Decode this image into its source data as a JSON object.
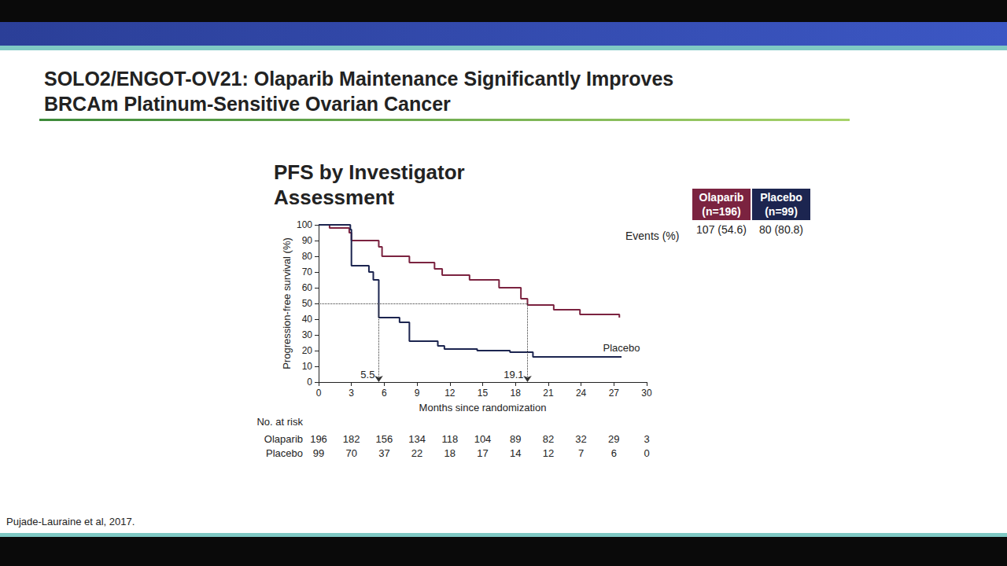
{
  "slide": {
    "title": [
      "SOLO2/ENGOT-OV21: Olaparib Maintenance Significantly Improves",
      "BRCAm Platinum-Sensitive Ovarian Cancer"
    ],
    "source": "Pujade-Lauraine et al, 2017."
  },
  "chart_data": {
    "type": "step",
    "title": "PFS by Investigator Assessment",
    "x_label": "Months since randomization",
    "y_label": "Progression-free survival (%)",
    "xlim": [
      0,
      30
    ],
    "xticks": [
      0,
      3,
      6,
      9,
      12,
      15,
      18,
      21,
      24,
      27,
      30
    ],
    "ylim": [
      0,
      100
    ],
    "yticks": [
      0,
      10,
      20,
      30,
      40,
      50,
      60,
      70,
      80,
      90,
      100
    ],
    "grid": false,
    "median_survival": 50,
    "events_label": "Events (%)",
    "at_risk_label": "No. at risk",
    "at_risk_x": [
      0,
      3,
      6,
      9,
      12,
      15,
      18,
      21,
      24,
      27,
      30
    ],
    "series": [
      {
        "name": "Olaparib",
        "n_label": "(n=196)",
        "color": "#7b2340",
        "x": [
          0,
          1.0,
          2.8,
          3.0,
          5.5,
          5.8,
          8.3,
          10.6,
          11.3,
          13.8,
          16.5,
          18.5,
          19.1,
          21.5,
          23.9,
          27.5
        ],
        "values": [
          100,
          98,
          95,
          90,
          86,
          80,
          76,
          72,
          68,
          65,
          60,
          53,
          49,
          46,
          43,
          41
        ],
        "median": 19.1,
        "events": "107 (54.6)",
        "at_risk": [
          196,
          182,
          156,
          134,
          118,
          104,
          89,
          82,
          32,
          29,
          3
        ]
      },
      {
        "name": "Placebo",
        "n_label": "(n=99)",
        "color": "#1c2550",
        "x": [
          0,
          2.9,
          3.0,
          4.6,
          5.0,
          5.5,
          7.4,
          8.3,
          10.9,
          11.5,
          14.5,
          17.5,
          19.6,
          27.7
        ],
        "values": [
          100,
          97,
          74,
          70,
          65,
          41,
          38,
          26,
          23,
          21,
          20,
          19,
          16,
          16
        ],
        "median": 5.5,
        "events": "80 (80.8)",
        "curve_label": "Placebo",
        "at_risk": [
          99,
          70,
          37,
          22,
          18,
          17,
          14,
          12,
          7,
          6,
          0
        ]
      }
    ]
  }
}
